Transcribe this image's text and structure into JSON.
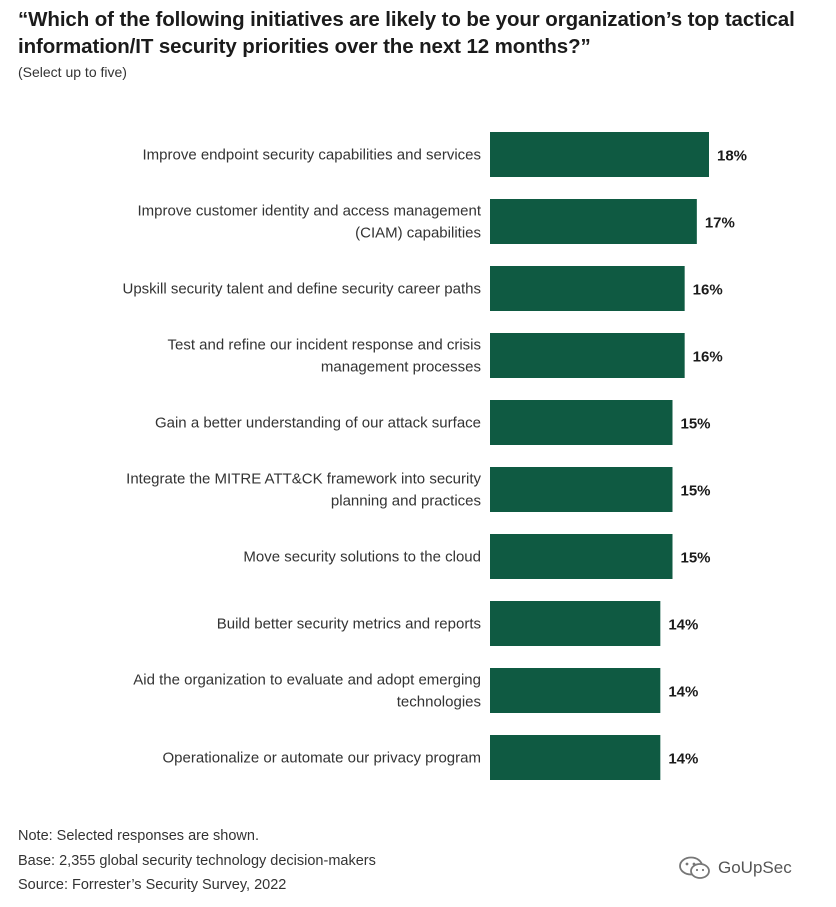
{
  "header": {
    "title": "“Which of the following initiatives are likely to be your organization’s top tactical information/IT security priorities over the next 12 months?”",
    "subtitle": "(Select up to five)"
  },
  "colors": {
    "bar": "#0f5a42",
    "label": "#333333",
    "value": "#1b1b1b"
  },
  "chart_data": {
    "type": "bar",
    "orientation": "horizontal",
    "title": "“Which of the following initiatives are likely to be your organization’s top tactical information/IT security priorities over the next 12 months?”",
    "subtitle": "(Select up to five)",
    "categories": [
      [
        "Improve endpoint security capabilities and services"
      ],
      [
        "Improve customer identity and access management",
        "(CIAM) capabilities"
      ],
      [
        "Upskill security talent and define security career paths"
      ],
      [
        "Test and refine our incident response and crisis",
        "management processes"
      ],
      [
        "Gain a better understanding of our attack surface"
      ],
      [
        "Integrate the MITRE ATT&CK framework into security",
        "planning and practices"
      ],
      [
        "Move security solutions to the cloud"
      ],
      [
        "Build better security metrics and reports"
      ],
      [
        "Aid the organization to evaluate and adopt emerging",
        "technologies"
      ],
      [
        "Operationalize or automate our privacy program"
      ]
    ],
    "values": [
      18,
      17,
      16,
      16,
      15,
      15,
      15,
      14,
      14,
      14
    ],
    "value_labels": [
      "18%",
      "17%",
      "16%",
      "16%",
      "15%",
      "15%",
      "15%",
      "14%",
      "14%",
      "14%"
    ],
    "unit": "%",
    "xlabel": "",
    "ylabel": "",
    "grid": false,
    "legend": "none"
  },
  "footer": {
    "note": "Note: Selected responses are shown.",
    "base": "Base: 2,355 global security technology decision-makers",
    "source": "Source: Forrester’s Security Survey, 2022"
  },
  "watermark": {
    "text": "GoUpSec",
    "icon": "wechat-icon"
  }
}
